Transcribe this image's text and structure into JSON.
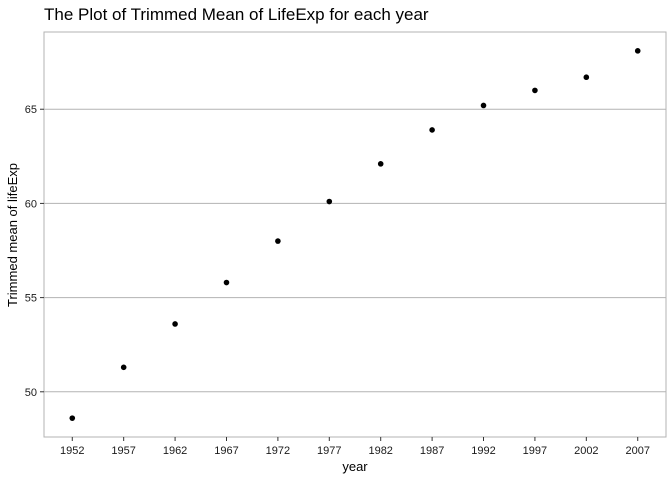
{
  "chart_data": {
    "type": "scatter",
    "title": "The Plot of Trimmed Mean of LifeExp for each year",
    "xlabel": "year",
    "ylabel": "Trimmed mean of lifeExp",
    "x": [
      1952,
      1957,
      1962,
      1967,
      1972,
      1977,
      1982,
      1987,
      1992,
      1997,
      2002,
      2007
    ],
    "y": [
      48.6,
      51.3,
      53.6,
      55.8,
      58.0,
      60.1,
      62.1,
      63.9,
      65.2,
      66.0,
      66.7,
      68.1
    ],
    "x_ticks": [
      "1952",
      "1957",
      "1962",
      "1967",
      "1972",
      "1977",
      "1982",
      "1987",
      "1992",
      "1997",
      "2002",
      "2007"
    ],
    "y_ticks": [
      50,
      55,
      60,
      65
    ],
    "xlim": [
      1949.25,
      2009.75
    ],
    "ylim": [
      47.6,
      69.1
    ],
    "grid": "horizontal major lines",
    "legend": "none",
    "colors": {
      "points": "#000000",
      "grid": "#b3b3b3",
      "panel_border": "#b3b3b3",
      "background": "#ffffff"
    }
  }
}
